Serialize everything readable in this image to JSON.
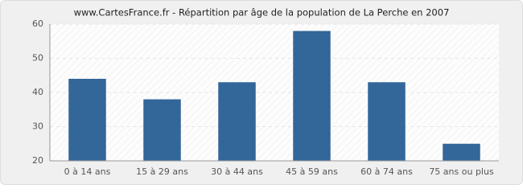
{
  "chart_data": {
    "type": "bar",
    "title": "www.CartesFrance.fr - Répartition par âge de la population de La Perche en 2007",
    "categories": [
      "0 à 14 ans",
      "15 à 29 ans",
      "30 à 44 ans",
      "45 à 59 ans",
      "60 à 74 ans",
      "75 ans ou plus"
    ],
    "values": [
      44,
      38,
      43,
      58,
      43,
      25
    ],
    "color": "#336699",
    "ylim": [
      20,
      60
    ],
    "yticks": [
      20,
      30,
      40,
      50,
      60
    ],
    "grid": true
  }
}
